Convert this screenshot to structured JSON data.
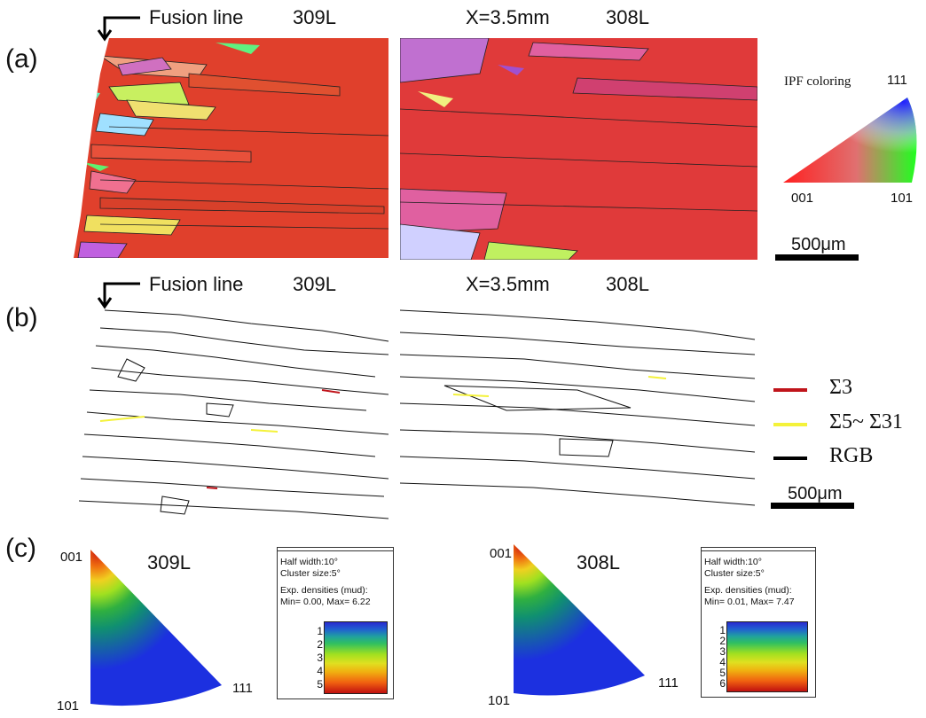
{
  "panels": {
    "a": {
      "letter": "(a)",
      "fusion_line": "Fusion line",
      "left_material": "309L",
      "position": "X=3.5mm",
      "right_material": "308L",
      "ipf": {
        "title": "IPF coloring",
        "corner_001": "001",
        "corner_101": "101",
        "corner_111": "111"
      },
      "scale": "500μm"
    },
    "b": {
      "letter": "(b)",
      "fusion_line": "Fusion line",
      "left_material": "309L",
      "position": "X=3.5mm",
      "right_material": "308L",
      "legend": [
        {
          "label": "Σ3",
          "color": "#c0141b"
        },
        {
          "label": "Σ5~ Σ31",
          "color": "#f4f23a"
        },
        {
          "label": "RGB",
          "color": "#000000"
        }
      ],
      "scale": "500μm"
    },
    "c": {
      "letter": "(c)",
      "left": {
        "material": "309L",
        "corner_001": "001",
        "corner_101": "101",
        "corner_111": "111",
        "info": {
          "half_width": "Half width:10°",
          "cluster": "Cluster size:5°",
          "exp": "Exp. densities (mud):",
          "minmax": "Min= 0.00, Max= 6.22"
        },
        "ticks": [
          "1",
          "2",
          "3",
          "4",
          "5"
        ]
      },
      "right": {
        "material": "308L",
        "corner_001": "001",
        "corner_101": "101",
        "corner_111": "111",
        "info": {
          "half_width": "Half width:10°",
          "cluster": "Cluster size:5°",
          "exp": "Exp. densities (mud):",
          "minmax": "Min= 0.01, Max= 7.47"
        },
        "ticks": [
          "1",
          "2",
          "3",
          "4",
          "5",
          "6"
        ]
      }
    }
  }
}
